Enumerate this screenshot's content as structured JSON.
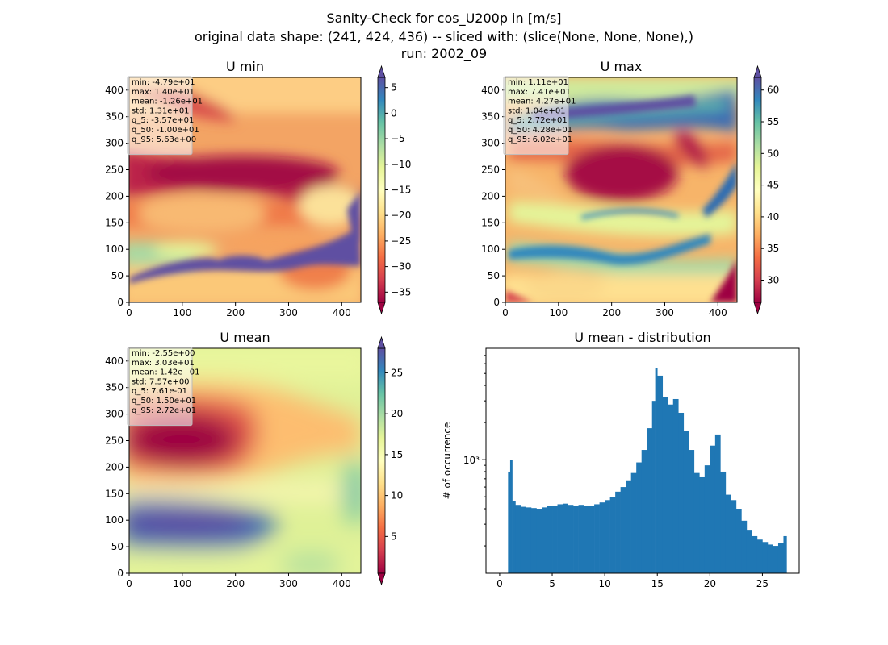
{
  "suptitle": {
    "line1": "Sanity-Check for cos_U200p in [m/s]",
    "line2": "original data shape: (241, 424, 436) -- sliced with: (slice(None, None, None),)",
    "line3": "run: 2002_09"
  },
  "chart_data": [
    {
      "type": "heatmap",
      "title": "U min",
      "xlim": [
        0,
        436
      ],
      "ylim": [
        0,
        424
      ],
      "xticks": [
        "0",
        "100",
        "200",
        "300",
        "400"
      ],
      "yticks": [
        "0",
        "50",
        "100",
        "150",
        "200",
        "250",
        "300",
        "350",
        "400"
      ],
      "colormap": "Spectral",
      "colorbar": {
        "min": -37,
        "max": 7,
        "ticks": [
          "5",
          "0",
          "−5",
          "−10",
          "−15",
          "−20",
          "−25",
          "−30",
          "−35"
        ],
        "extend": "both"
      },
      "stats": [
        "min: -4.79e+01",
        "max: 1.40e+01",
        "mean: -1.26e+01",
        "std: 1.31e+01",
        "q_5: -3.57e+01",
        "q_50: -1.00e+01",
        "q_95: 5.63e+00"
      ]
    },
    {
      "type": "heatmap",
      "title": "U max",
      "xlim": [
        0,
        436
      ],
      "ylim": [
        0,
        424
      ],
      "xticks": [
        "0",
        "100",
        "200",
        "300",
        "400"
      ],
      "yticks": [
        "0",
        "50",
        "100",
        "150",
        "200",
        "250",
        "300",
        "350",
        "400"
      ],
      "colormap": "Spectral",
      "colorbar": {
        "min": 26.5,
        "max": 62,
        "ticks": [
          "60",
          "55",
          "50",
          "45",
          "40",
          "35",
          "30"
        ],
        "extend": "both"
      },
      "stats": [
        "min: 1.11e+01",
        "max: 7.41e+01",
        "mean: 4.27e+01",
        "std: 1.04e+01",
        "q_5: 2.72e+01",
        "q_50: 4.28e+01",
        "q_95: 6.02e+01"
      ]
    },
    {
      "type": "heatmap",
      "title": "U mean",
      "xlim": [
        0,
        436
      ],
      "ylim": [
        0,
        424
      ],
      "xticks": [
        "0",
        "100",
        "200",
        "300",
        "400"
      ],
      "yticks": [
        "0",
        "50",
        "100",
        "150",
        "200",
        "250",
        "300",
        "350",
        "400"
      ],
      "colormap": "Spectral",
      "colorbar": {
        "min": 0.5,
        "max": 28,
        "ticks": [
          "25",
          "20",
          "15",
          "10",
          "5"
        ],
        "extend": "both"
      },
      "stats": [
        "min: -2.55e+00",
        "max: 3.03e+01",
        "mean: 1.42e+01",
        "std: 7.57e+00",
        "q_5: 7.61e-01",
        "q_50: 1.50e+01",
        "q_95: 2.72e+01"
      ]
    },
    {
      "type": "bar",
      "title": "U mean - distribution",
      "ylabel": "# of occurrence",
      "yscale": "log",
      "xlim": [
        -1.3,
        28.5
      ],
      "ylim": [
        120,
        8000
      ],
      "xticks": [
        "0",
        "5",
        "10",
        "15",
        "20",
        "25"
      ],
      "ytick_label": "10³",
      "color": "#1f77b4",
      "bins": [
        {
          "x": 0.8,
          "count": 800
        },
        {
          "x": 1.0,
          "count": 1000
        },
        {
          "x": 1.2,
          "count": 460
        },
        {
          "x": 1.5,
          "count": 430
        },
        {
          "x": 2.0,
          "count": 415
        },
        {
          "x": 2.5,
          "count": 410
        },
        {
          "x": 3.0,
          "count": 405
        },
        {
          "x": 3.5,
          "count": 400
        },
        {
          "x": 4.0,
          "count": 410
        },
        {
          "x": 4.5,
          "count": 420
        },
        {
          "x": 5.0,
          "count": 425
        },
        {
          "x": 5.5,
          "count": 435
        },
        {
          "x": 6.0,
          "count": 440
        },
        {
          "x": 6.5,
          "count": 430
        },
        {
          "x": 7.0,
          "count": 425
        },
        {
          "x": 7.5,
          "count": 430
        },
        {
          "x": 8.0,
          "count": 425
        },
        {
          "x": 8.5,
          "count": 425
        },
        {
          "x": 9.0,
          "count": 435
        },
        {
          "x": 9.5,
          "count": 450
        },
        {
          "x": 10.0,
          "count": 470
        },
        {
          "x": 10.5,
          "count": 500
        },
        {
          "x": 11.0,
          "count": 550
        },
        {
          "x": 11.5,
          "count": 600
        },
        {
          "x": 12.0,
          "count": 680
        },
        {
          "x": 12.5,
          "count": 780
        },
        {
          "x": 13.0,
          "count": 950
        },
        {
          "x": 13.5,
          "count": 1200
        },
        {
          "x": 14.0,
          "count": 1800
        },
        {
          "x": 14.5,
          "count": 3000
        },
        {
          "x": 14.8,
          "count": 5500
        },
        {
          "x": 15.0,
          "count": 4800
        },
        {
          "x": 15.5,
          "count": 3200
        },
        {
          "x": 16.0,
          "count": 2800
        },
        {
          "x": 16.5,
          "count": 3100
        },
        {
          "x": 17.0,
          "count": 2400
        },
        {
          "x": 17.5,
          "count": 1700
        },
        {
          "x": 18.0,
          "count": 1200
        },
        {
          "x": 18.5,
          "count": 780
        },
        {
          "x": 19.0,
          "count": 720
        },
        {
          "x": 19.5,
          "count": 900
        },
        {
          "x": 20.0,
          "count": 1300
        },
        {
          "x": 20.5,
          "count": 1600
        },
        {
          "x": 21.0,
          "count": 800
        },
        {
          "x": 21.5,
          "count": 520
        },
        {
          "x": 22.0,
          "count": 470
        },
        {
          "x": 22.5,
          "count": 400
        },
        {
          "x": 23.0,
          "count": 320
        },
        {
          "x": 23.5,
          "count": 270
        },
        {
          "x": 24.0,
          "count": 240
        },
        {
          "x": 24.5,
          "count": 225
        },
        {
          "x": 25.0,
          "count": 215
        },
        {
          "x": 25.5,
          "count": 205
        },
        {
          "x": 26.0,
          "count": 200
        },
        {
          "x": 26.5,
          "count": 210
        },
        {
          "x": 27.0,
          "count": 240
        }
      ]
    }
  ]
}
